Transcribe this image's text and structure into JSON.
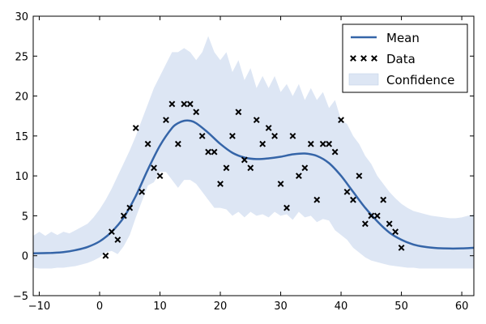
{
  "chart_data": {
    "type": "line",
    "title": "",
    "xlabel": "",
    "ylabel": "",
    "xlim": [
      -11,
      62
    ],
    "ylim": [
      -5,
      30
    ],
    "xticks": [
      -10,
      0,
      10,
      20,
      30,
      40,
      50,
      60
    ],
    "yticks": [
      -5,
      0,
      5,
      10,
      15,
      20,
      25,
      30
    ],
    "xtick_labels": [
      "−10",
      "0",
      "10",
      "20",
      "30",
      "40",
      "50",
      "60"
    ],
    "ytick_labels": [
      "−5",
      "0",
      "5",
      "10",
      "15",
      "20",
      "25",
      "30"
    ],
    "grid": false,
    "legend": {
      "position": "top-right"
    },
    "colors": {
      "mean": "#3565a8",
      "data": "#000000",
      "confidence": "#dde6f4"
    },
    "series": [
      {
        "name": "Mean",
        "kind": "line",
        "x": [
          -11,
          -8,
          -6,
          -4,
          -2,
          0,
          2,
          4,
          6,
          8,
          10,
          12,
          13,
          14,
          15,
          16,
          18,
          20,
          22,
          24,
          26,
          28,
          30,
          32,
          34,
          36,
          38,
          40,
          42,
          44,
          46,
          48,
          50,
          52,
          54,
          56,
          58,
          60,
          62
        ],
        "y": [
          0.3,
          0.35,
          0.45,
          0.7,
          1.1,
          1.8,
          3.0,
          4.8,
          7.5,
          10.8,
          13.8,
          16.0,
          16.6,
          16.9,
          16.9,
          16.6,
          15.4,
          14.0,
          12.9,
          12.3,
          12.1,
          12.2,
          12.4,
          12.7,
          12.8,
          12.5,
          11.6,
          10.0,
          8.0,
          6.0,
          4.3,
          2.9,
          2.0,
          1.4,
          1.1,
          0.95,
          0.9,
          0.92,
          1.0
        ]
      },
      {
        "name": "Data",
        "kind": "scatter",
        "marker": "x",
        "x": [
          1,
          2,
          3,
          4,
          5,
          6,
          7,
          8,
          9,
          10,
          11,
          12,
          13,
          14,
          15,
          16,
          17,
          18,
          19,
          20,
          21,
          22,
          23,
          24,
          25,
          26,
          27,
          28,
          29,
          30,
          31,
          32,
          33,
          34,
          35,
          36,
          37,
          38,
          39,
          40,
          41,
          42,
          43,
          44,
          45,
          46,
          47,
          48,
          49,
          50
        ],
        "y": [
          0,
          3,
          2,
          5,
          6,
          16,
          8,
          14,
          11,
          10,
          17,
          19,
          14,
          19,
          19,
          18,
          15,
          13,
          13,
          9,
          11,
          15,
          18,
          12,
          11,
          17,
          14,
          16,
          15,
          9,
          6,
          15,
          10,
          11,
          14,
          7,
          14,
          14,
          13,
          17,
          8,
          7,
          10,
          4,
          5,
          5,
          7,
          4,
          3,
          1
        ]
      },
      {
        "name": "Confidence",
        "kind": "band",
        "x": [
          -11,
          -10,
          -9,
          -8,
          -7,
          -6,
          -5,
          -4,
          -3,
          -2,
          -1,
          0,
          1,
          2,
          3,
          4,
          5,
          6,
          7,
          8,
          9,
          10,
          11,
          12,
          13,
          14,
          15,
          16,
          17,
          18,
          19,
          20,
          21,
          22,
          23,
          24,
          25,
          26,
          27,
          28,
          29,
          30,
          31,
          32,
          33,
          34,
          35,
          36,
          37,
          38,
          39,
          40,
          41,
          42,
          43,
          44,
          45,
          46,
          47,
          48,
          49,
          50,
          51,
          52,
          53,
          54,
          55,
          56,
          57,
          58,
          59,
          60,
          61,
          62
        ],
        "upper": [
          2.5,
          3.0,
          2.5,
          3.0,
          2.6,
          3.0,
          2.8,
          3.2,
          3.6,
          4.0,
          4.8,
          5.8,
          7.0,
          8.4,
          10.0,
          11.6,
          13.2,
          15.0,
          17.0,
          19.0,
          21.0,
          22.5,
          24.0,
          25.5,
          25.5,
          26.0,
          25.5,
          24.5,
          25.5,
          27.5,
          25.5,
          24.5,
          25.5,
          23.0,
          24.5,
          22.0,
          23.5,
          21.0,
          22.5,
          21.0,
          22.5,
          20.5,
          21.5,
          20.0,
          21.5,
          19.5,
          21.0,
          19.5,
          20.5,
          18.5,
          19.5,
          17.0,
          16.5,
          15.0,
          14.0,
          12.5,
          11.5,
          10.0,
          9.0,
          8.0,
          7.2,
          6.5,
          6.0,
          5.6,
          5.4,
          5.2,
          5.0,
          4.9,
          4.8,
          4.7,
          4.7,
          4.8,
          5.0,
          5.2
        ],
        "lower": [
          -1.5,
          -1.6,
          -1.6,
          -1.6,
          -1.5,
          -1.5,
          -1.4,
          -1.3,
          -1.1,
          -0.9,
          -0.6,
          -0.2,
          0.4,
          0.6,
          0.2,
          1.2,
          2.6,
          4.8,
          6.8,
          8.8,
          9.2,
          10.5,
          10.5,
          9.5,
          8.5,
          9.5,
          9.5,
          9.0,
          8.0,
          7.0,
          6.0,
          6.0,
          5.8,
          5.0,
          5.5,
          4.8,
          5.5,
          5.0,
          5.2,
          4.8,
          5.5,
          5.0,
          5.2,
          4.5,
          5.5,
          4.8,
          5.0,
          4.2,
          4.6,
          4.4,
          3.2,
          2.6,
          2.0,
          1.0,
          0.4,
          -0.2,
          -0.6,
          -0.8,
          -1.0,
          -1.2,
          -1.3,
          -1.4,
          -1.5,
          -1.5,
          -1.6,
          -1.6,
          -1.6,
          -1.6,
          -1.6,
          -1.6,
          -1.6,
          -1.6,
          -1.6,
          -1.6
        ]
      }
    ]
  }
}
